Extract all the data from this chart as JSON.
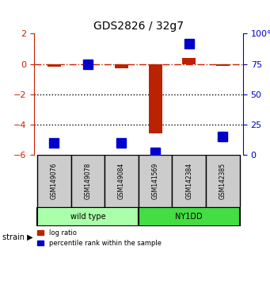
{
  "title": "GDS2826 / 32g7",
  "samples": [
    "GSM149076",
    "GSM149078",
    "GSM149084",
    "GSM141569",
    "GSM142384",
    "GSM142385"
  ],
  "groups": [
    {
      "label": "wild type",
      "indices": [
        0,
        1,
        2
      ],
      "color": "#aaffaa"
    },
    {
      "label": "NY1DD",
      "indices": [
        3,
        4,
        5
      ],
      "color": "#44dd44"
    }
  ],
  "log_ratio": [
    -0.2,
    -0.05,
    -0.3,
    -4.6,
    0.4,
    -0.1
  ],
  "percentile_rank": [
    10,
    75,
    10,
    2,
    92,
    15
  ],
  "ylim_left": [
    -6,
    2
  ],
  "ylim_right": [
    0,
    100
  ],
  "yticks_left": [
    -6,
    -4,
    -2,
    0,
    2
  ],
  "yticks_right": [
    0,
    25,
    50,
    75,
    100
  ],
  "ylabel_left_color": "#cc2200",
  "ylabel_right_color": "#0000cc",
  "bar_color_red": "#bb2200",
  "bar_color_blue": "#0000cc",
  "hline_color": "#cc2200",
  "hline_style": "-.",
  "grid_color": "#000000",
  "strain_label": "strain",
  "legend_red": "log ratio",
  "legend_blue": "percentile rank within the sample",
  "bar_width": 0.4,
  "blue_marker_size": 8
}
